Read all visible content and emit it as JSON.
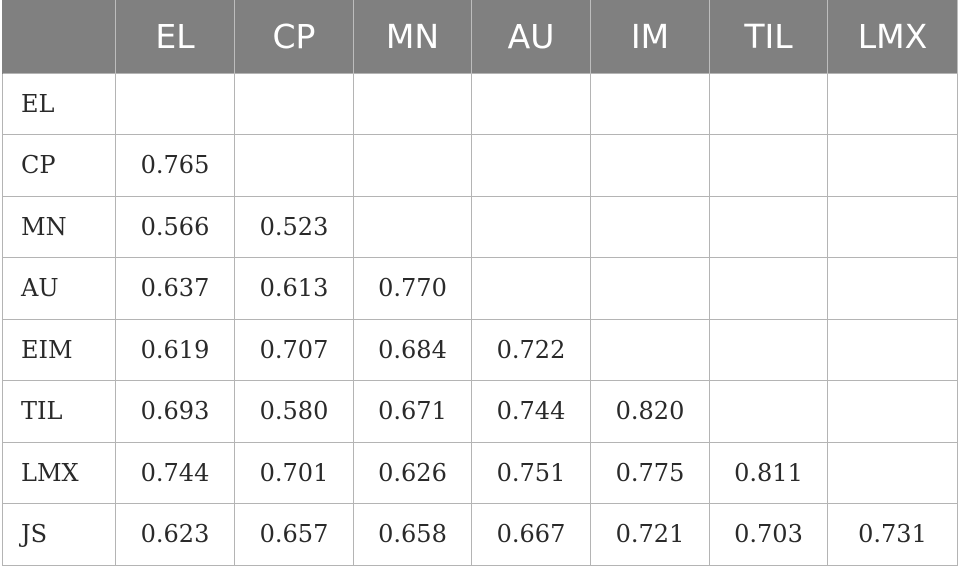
{
  "table": {
    "columns": [
      "",
      "EL",
      "CP",
      "MN",
      "AU",
      "IM",
      "TIL",
      "LMX"
    ],
    "rows": [
      {
        "label": "EL",
        "values": [
          "",
          "",
          "",
          "",
          "",
          "",
          ""
        ]
      },
      {
        "label": "CP",
        "values": [
          "0.765",
          "",
          "",
          "",
          "",
          "",
          ""
        ]
      },
      {
        "label": "MN",
        "values": [
          "0.566",
          "0.523",
          "",
          "",
          "",
          "",
          ""
        ]
      },
      {
        "label": "AU",
        "values": [
          "0.637",
          "0.613",
          "0.770",
          "",
          "",
          "",
          ""
        ]
      },
      {
        "label": "EIM",
        "values": [
          "0.619",
          "0.707",
          "0.684",
          "0.722",
          "",
          "",
          ""
        ]
      },
      {
        "label": "TIL",
        "values": [
          "0.693",
          "0.580",
          "0.671",
          "0.744",
          "0.820",
          "",
          ""
        ]
      },
      {
        "label": "LMX",
        "values": [
          "0.744",
          "0.701",
          "0.626",
          "0.751",
          "0.775",
          "0.811",
          ""
        ]
      },
      {
        "label": "JS",
        "values": [
          "0.623",
          "0.657",
          "0.658",
          "0.667",
          "0.721",
          "0.703",
          "0.731"
        ]
      }
    ]
  }
}
